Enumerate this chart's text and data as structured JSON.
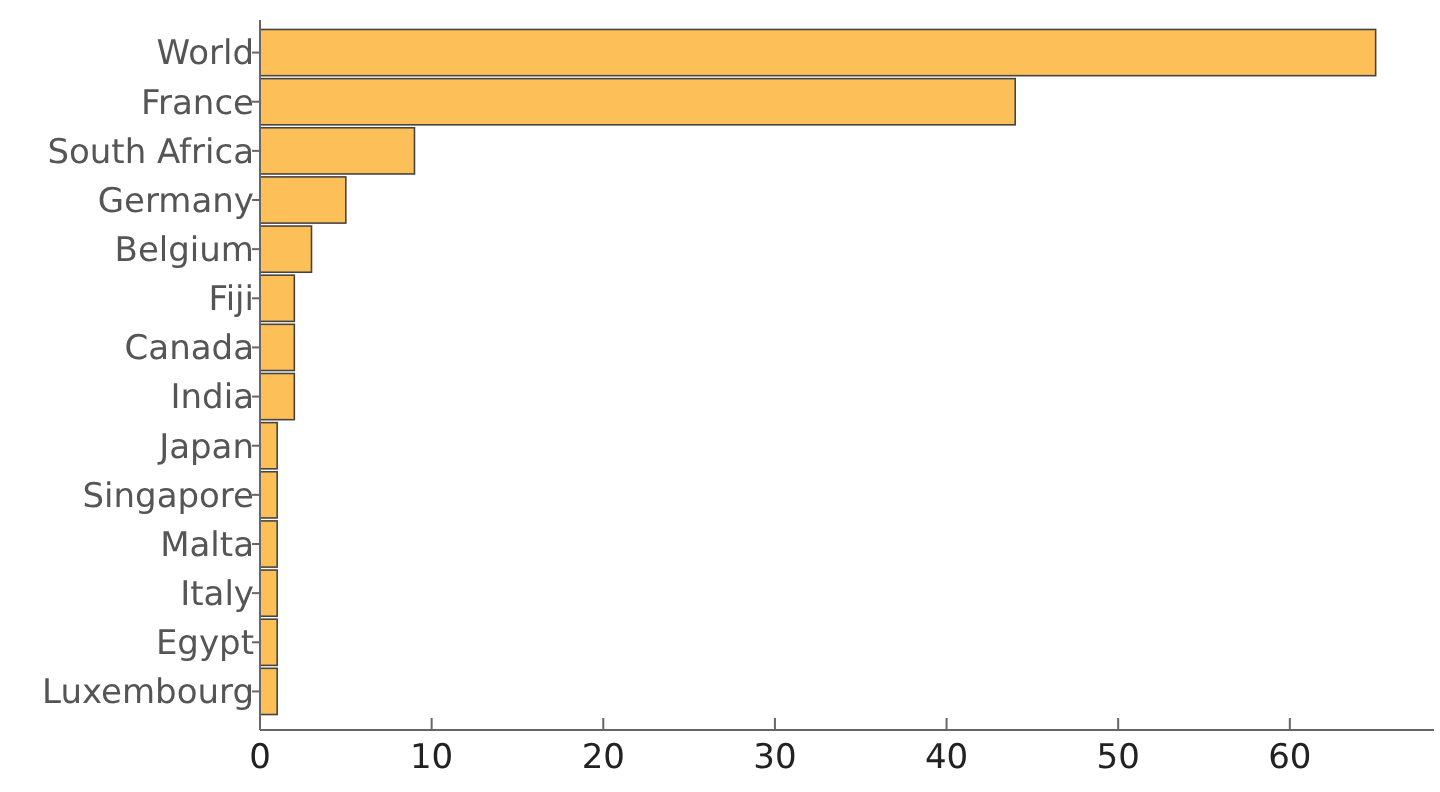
{
  "chart_data": {
    "type": "bar",
    "orientation": "horizontal",
    "categories": [
      "World",
      "France",
      "South Africa",
      "Germany",
      "Belgium",
      "Fiji",
      "Canada",
      "India",
      "Japan",
      "Singapore",
      "Malta",
      "Italy",
      "Egypt",
      "Luxembourg"
    ],
    "values": [
      65,
      44,
      9,
      5,
      3,
      2,
      2,
      2,
      1,
      1,
      1,
      1,
      1,
      1
    ],
    "color": "#fdbf57",
    "xlim": [
      0,
      68.4
    ],
    "xticks": [
      0,
      10,
      20,
      30,
      40,
      50,
      60
    ],
    "grid": false
  }
}
